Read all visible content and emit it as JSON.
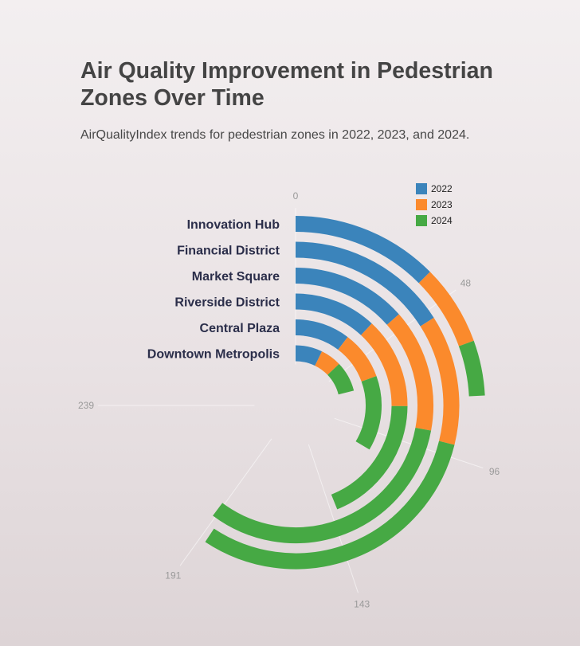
{
  "header": {
    "title": "Air Quality Improvement in Pedestrian Zones Over Time",
    "subtitle": "AirQualityIndex trends for pedestrian zones in 2022, 2023, and 2024."
  },
  "chart_data": {
    "type": "radial-stacked-bar",
    "title": "Air Quality Improvement in Pedestrian Zones Over Time",
    "subtitle": "AirQualityIndex trends for pedestrian zones in 2022, 2023, and 2024.",
    "categories": [
      "Innovation Hub",
      "Financial District",
      "Market Square",
      "Riverside District",
      "Central Plaza",
      "Downtown Metropolis"
    ],
    "series": [
      {
        "name": "2022",
        "color": "#3b84bb",
        "values": [
          40,
          51,
          43,
          38,
          33,
          23
        ]
      },
      {
        "name": "2023",
        "color": "#fb8a2c",
        "values": [
          22,
          41,
          46,
          42,
          29,
          18
        ]
      },
      {
        "name": "2024",
        "color": "#46a944",
        "values": [
          15,
          97,
          103,
          60,
          45,
          26
        ]
      }
    ],
    "axis": {
      "ticks": [
        0,
        48,
        96,
        143,
        191,
        239
      ],
      "range": [
        0,
        239
      ]
    },
    "legend": {
      "position": "top-right"
    }
  }
}
